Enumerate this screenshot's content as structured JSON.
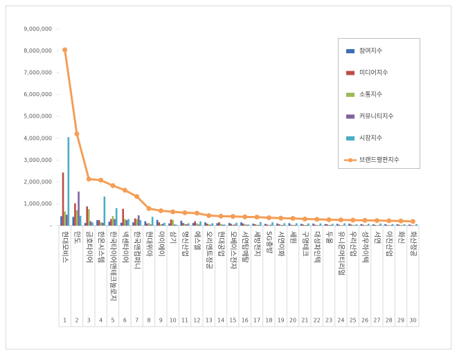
{
  "chart_data": {
    "type": "bar",
    "categories": [
      "현대모비스",
      "만도",
      "금호타이어",
      "한온시스템",
      "한국타이어앤테크놀로지",
      "넥센타이어",
      "한국앤컴퍼니",
      "현대위아",
      "아이에이",
      "삼기",
      "명신산업",
      "에스엘",
      "오리엔트정공",
      "현대공업",
      "모베이스전자",
      "서연탑메탈",
      "세방전지",
      "SG충방",
      "서연이화",
      "세원",
      "구영테크",
      "대성파인텍",
      "두올",
      "유니온머티리얼",
      "우리산업",
      "성우하이텍",
      "서연",
      "아진산업",
      "화신",
      "화산정공"
    ],
    "ranks": [
      1,
      2,
      3,
      4,
      5,
      6,
      7,
      8,
      9,
      10,
      11,
      12,
      13,
      14,
      15,
      16,
      17,
      18,
      19,
      20,
      21,
      22,
      23,
      24,
      25,
      26,
      27,
      28,
      29,
      30
    ],
    "series": [
      {
        "name": "참여지수",
        "color": "#3f6eb4",
        "values": [
          430000,
          400000,
          120000,
          250000,
          180000,
          130000,
          150000,
          200000,
          260000,
          100000,
          220000,
          120000,
          150000,
          110000,
          120000,
          150000,
          90000,
          80000,
          100000,
          110000,
          80000,
          90000,
          70000,
          80000,
          90000,
          70000,
          60000,
          70000,
          60000,
          50000
        ]
      },
      {
        "name": "미디어지수",
        "color": "#be4b48",
        "values": [
          2430000,
          1020000,
          880000,
          250000,
          300000,
          770000,
          330000,
          100000,
          150000,
          280000,
          120000,
          200000,
          90000,
          150000,
          80000,
          100000,
          60000,
          50000,
          60000,
          40000,
          50000,
          40000,
          60000,
          40000,
          50000,
          40000,
          30000,
          30000,
          40000,
          30000
        ]
      },
      {
        "name": "소통지수",
        "color": "#9bbb59",
        "values": [
          650000,
          700000,
          750000,
          150000,
          440000,
          300000,
          300000,
          120000,
          60000,
          260000,
          80000,
          100000,
          60000,
          80000,
          40000,
          60000,
          40000,
          30000,
          40000,
          30000,
          30000,
          30000,
          30000,
          20000,
          30000,
          20000,
          20000,
          20000,
          20000,
          20000
        ]
      },
      {
        "name": "커뮤니티지수",
        "color": "#7f63a1",
        "values": [
          500000,
          1560000,
          200000,
          130000,
          300000,
          250000,
          470000,
          50000,
          80000,
          50000,
          60000,
          50000,
          40000,
          40000,
          50000,
          40000,
          30000,
          40000,
          30000,
          30000,
          30000,
          20000,
          30000,
          20000,
          20000,
          20000,
          20000,
          20000,
          20000,
          10000
        ]
      },
      {
        "name": "시장지수",
        "color": "#4bacc6",
        "values": [
          4050000,
          450000,
          150000,
          1330000,
          800000,
          300000,
          250000,
          400000,
          130000,
          40000,
          110000,
          190000,
          110000,
          50000,
          130000,
          50000,
          160000,
          150000,
          110000,
          110000,
          100000,
          100000,
          80000,
          110000,
          60000,
          80000,
          100000,
          70000,
          60000,
          70000
        ]
      },
      {
        "name": "브랜드평판지수",
        "type": "line",
        "color": "#f59d56",
        "values": [
          8050000,
          4200000,
          2130000,
          2080000,
          1830000,
          1620000,
          1330000,
          780000,
          680000,
          630000,
          590000,
          570000,
          460000,
          430000,
          420000,
          400000,
          390000,
          360000,
          340000,
          330000,
          300000,
          290000,
          270000,
          260000,
          250000,
          240000,
          230000,
          220000,
          210000,
          190000
        ]
      }
    ],
    "ylim": [
      0,
      9000000
    ],
    "yticks": [
      {
        "value": 0,
        "label": "-"
      },
      {
        "value": 1000000,
        "label": "1,000,000"
      },
      {
        "value": 2000000,
        "label": "2,000,000"
      },
      {
        "value": 3000000,
        "label": "3,000,000"
      },
      {
        "value": 4000000,
        "label": "4,000,000"
      },
      {
        "value": 5000000,
        "label": "5,000,000"
      },
      {
        "value": 6000000,
        "label": "6,000,000"
      },
      {
        "value": 7000000,
        "label": "7,000,000"
      },
      {
        "value": 8000000,
        "label": "8,000,000"
      },
      {
        "value": 9000000,
        "label": "9,000,000"
      }
    ],
    "legend": "right"
  }
}
